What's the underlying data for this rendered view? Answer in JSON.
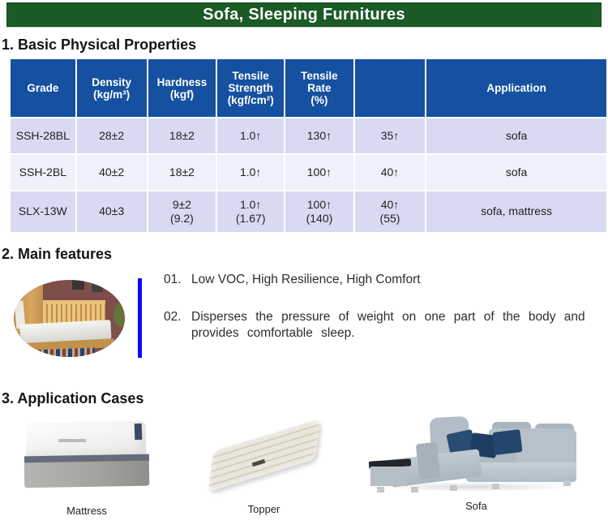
{
  "banner": {
    "title": "Sofa, Sleeping Furnitures"
  },
  "sections": [
    {
      "heading": "1. Basic Physical Properties"
    },
    {
      "heading": "2. Main features"
    },
    {
      "heading": "3. Application Cases"
    }
  ],
  "table": {
    "headers": [
      "Grade",
      "Density\n(kg/m³)",
      "Hardness\n(kgf)",
      "Tensile\nStrength\n(kgf/cm²)",
      "Tensile\nRate\n(%)",
      "",
      "Application"
    ],
    "rows": [
      [
        "SSH-28BL",
        "28±2",
        "18±2",
        "1.0↑",
        "130↑",
        "35↑",
        "sofa"
      ],
      [
        "SSH-2BL",
        "40±2",
        "18±2",
        "1.0↑",
        "100↑",
        "40↑",
        "sofa"
      ],
      [
        "SLX-13W",
        "40±3",
        "9±2\n(9.2)",
        "1.0↑\n(1.67)",
        "100↑\n(140)",
        "40↑\n(55)",
        "sofa, mattress"
      ]
    ]
  },
  "features": [
    {
      "num": "01.",
      "text": "Low VOC, High Resilience, High Comfort"
    },
    {
      "num": "02.",
      "text": "Disperses the pressure of weight on one part of the body and\nprovides comfortable sleep."
    }
  ],
  "applications": [
    {
      "label": "Mattress"
    },
    {
      "label": "Topper"
    },
    {
      "label": "Sofa"
    }
  ],
  "colors": {
    "banner_green": "#1b5a26",
    "table_header_blue": "#1551a0",
    "row_lavender": "#d9daf2",
    "row_light": "#eef0fb",
    "divider_blue": "#0a0aff"
  }
}
